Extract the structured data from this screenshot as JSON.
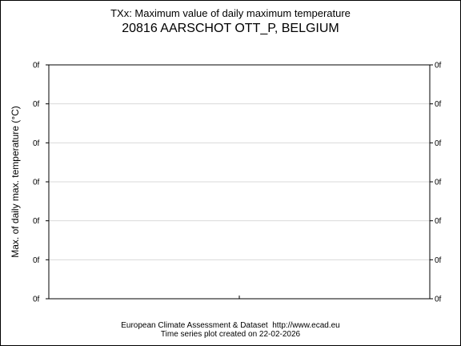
{
  "chart_data": {
    "type": "line",
    "title": "TXx: Maximum value of daily maximum temperature",
    "subtitle": "20816 AARSCHOT OTT_P, BELGIUM",
    "ylabel": "Max. of daily max. temperature (°C)",
    "xlabel": "",
    "y_tick_labels": [
      "0f",
      "0f",
      "0f",
      "0f",
      "0f",
      "0f",
      "0f"
    ],
    "x_tick_count": 1,
    "series": [],
    "grid": true,
    "legend": "none"
  },
  "footer": {
    "line1": "European Climate Assessment & Dataset  http://www.ecad.eu",
    "line2": "Time series plot created on 22-02-2026"
  },
  "colors": {
    "grid": "#d9d9d9",
    "axis": "#000000",
    "background": "#ffffff"
  }
}
